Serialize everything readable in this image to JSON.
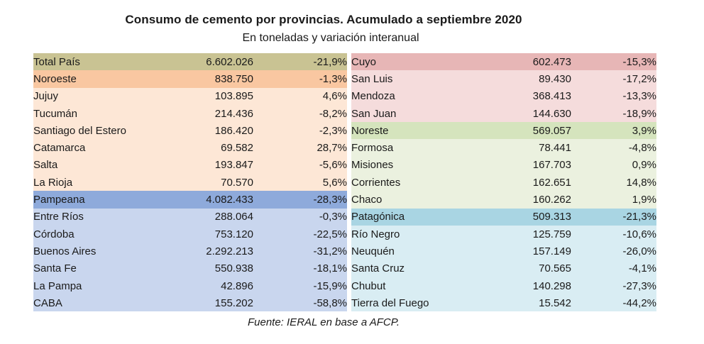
{
  "header": {
    "title": "Consumo de cemento por provincias. Acumulado a septiembre 2020",
    "subtitle": "En toneladas y variación interanual"
  },
  "left_rows": [
    {
      "name": "Total País",
      "value": "6.602.026",
      "change": "-21,9%",
      "color": "#c9c393"
    },
    {
      "name": "Noroeste",
      "value": "838.750",
      "change": "-1,3%",
      "color": "#f9c7a1"
    },
    {
      "name": "Jujuy",
      "value": "103.895",
      "change": "4,6%",
      "color": "#fde7d6"
    },
    {
      "name": "Tucumán",
      "value": "214.436",
      "change": "-8,2%",
      "color": "#fde7d6"
    },
    {
      "name": "Santiago del Estero",
      "value": "186.420",
      "change": "-2,3%",
      "color": "#fde7d6"
    },
    {
      "name": "Catamarca",
      "value": "69.582",
      "change": "28,7%",
      "color": "#fde7d6"
    },
    {
      "name": "Salta",
      "value": "193.847",
      "change": "-5,6%",
      "color": "#fde7d6"
    },
    {
      "name": "La Rioja",
      "value": "70.570",
      "change": "5,6%",
      "color": "#fde7d6"
    },
    {
      "name": "Pampeana",
      "value": "4.082.433",
      "change": "-28,3%",
      "color": "#8eaadb"
    },
    {
      "name": "Entre Ríos",
      "value": "288.064",
      "change": "-0,3%",
      "color": "#c9d6ee"
    },
    {
      "name": "Córdoba",
      "value": "753.120",
      "change": "-22,5%",
      "color": "#c9d6ee"
    },
    {
      "name": "Buenos Aires",
      "value": "2.292.213",
      "change": "-31,2%",
      "color": "#c9d6ee"
    },
    {
      "name": "Santa Fe",
      "value": "550.938",
      "change": "-18,1%",
      "color": "#c9d6ee"
    },
    {
      "name": "La Pampa",
      "value": "42.896",
      "change": "-15,9%",
      "color": "#c9d6ee"
    },
    {
      "name": "CABA",
      "value": "155.202",
      "change": "-58,8%",
      "color": "#c9d6ee"
    }
  ],
  "right_rows": [
    {
      "name": "Cuyo",
      "value": "602.473",
      "change": "-15,3%",
      "color": "#e7b6b6"
    },
    {
      "name": "San Luis",
      "value": "89.430",
      "change": "-17,2%",
      "color": "#f5dcdc"
    },
    {
      "name": "Mendoza",
      "value": "368.413",
      "change": "-13,3%",
      "color": "#f5dcdc"
    },
    {
      "name": "San Juan",
      "value": "144.630",
      "change": "-18,9%",
      "color": "#f5dcdc"
    },
    {
      "name": "Noreste",
      "value": "569.057",
      "change": "3,9%",
      "color": "#d5e4bd"
    },
    {
      "name": "Formosa",
      "value": "78.441",
      "change": "-4,8%",
      "color": "#ebf1df"
    },
    {
      "name": "Misiones",
      "value": "167.703",
      "change": "0,9%",
      "color": "#ebf1df"
    },
    {
      "name": "Corrientes",
      "value": "162.651",
      "change": "14,8%",
      "color": "#ebf1df"
    },
    {
      "name": "Chaco",
      "value": "160.262",
      "change": "1,9%",
      "color": "#ebf1df"
    },
    {
      "name": "Patagónica",
      "value": "509.313",
      "change": "-21,3%",
      "color": "#a9d5e3"
    },
    {
      "name": "Río Negro",
      "value": "125.759",
      "change": "-10,6%",
      "color": "#d9edf3"
    },
    {
      "name": "Neuquén",
      "value": "157.149",
      "change": "-26,0%",
      "color": "#d9edf3"
    },
    {
      "name": "Santa Cruz",
      "value": "70.565",
      "change": "-4,1%",
      "color": "#d9edf3"
    },
    {
      "name": "Chubut",
      "value": "140.298",
      "change": "-27,3%",
      "color": "#d9edf3"
    },
    {
      "name": "Tierra del Fuego",
      "value": "15.542",
      "change": "-44,2%",
      "color": "#d9edf3"
    }
  ],
  "footer": {
    "source": "Fuente: IERAL en base a AFCP."
  }
}
